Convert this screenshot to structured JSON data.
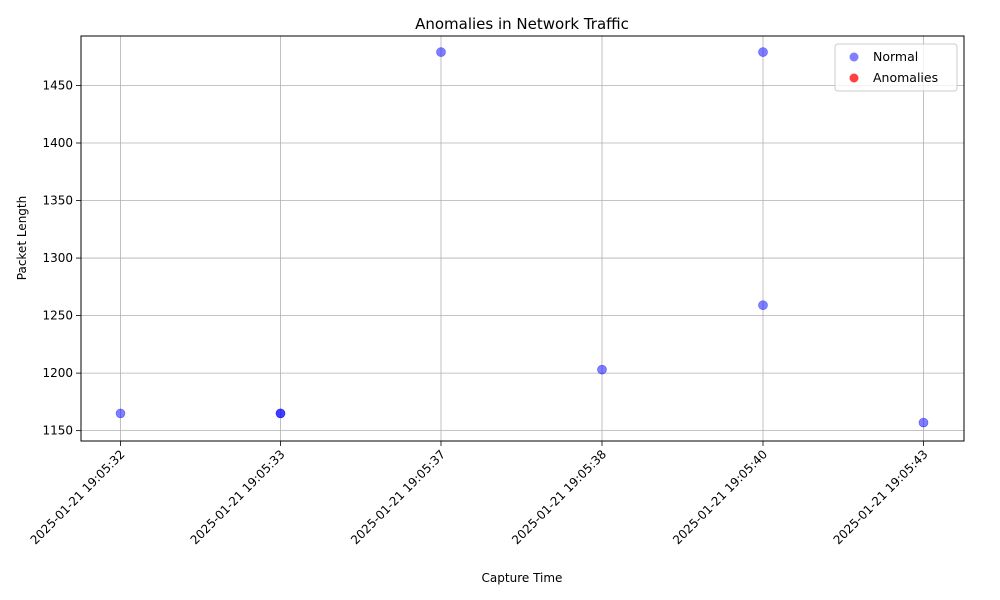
{
  "chart_data": {
    "type": "scatter",
    "title": "Anomalies in Network Traffic",
    "xlabel": "Capture Time",
    "ylabel": "Packet Length",
    "x_categories": [
      "2025-01-21 19:05:32",
      "2025-01-21 19:05:33",
      "2025-01-21 19:05:37",
      "2025-01-21 19:05:38",
      "2025-01-21 19:05:40",
      "2025-01-21 19:05:43"
    ],
    "yticks": [
      1150,
      1200,
      1250,
      1300,
      1350,
      1400,
      1450
    ],
    "ylim": [
      1141,
      1493
    ],
    "grid": true,
    "legend_position": "top-right",
    "series": [
      {
        "name": "Normal",
        "color": "#0000ff",
        "alpha": 0.5,
        "points": [
          {
            "x": "2025-01-21 19:05:32",
            "y": 1165
          },
          {
            "x": "2025-01-21 19:05:33",
            "y": 1165
          },
          {
            "x": "2025-01-21 19:05:33",
            "y": 1165
          },
          {
            "x": "2025-01-21 19:05:37",
            "y": 1479
          },
          {
            "x": "2025-01-21 19:05:38",
            "y": 1203
          },
          {
            "x": "2025-01-21 19:05:40",
            "y": 1479
          },
          {
            "x": "2025-01-21 19:05:40",
            "y": 1259
          },
          {
            "x": "2025-01-21 19:05:43",
            "y": 1157
          }
        ]
      },
      {
        "name": "Anomalies",
        "color": "#ff0000",
        "alpha": 0.75,
        "points": []
      }
    ]
  }
}
